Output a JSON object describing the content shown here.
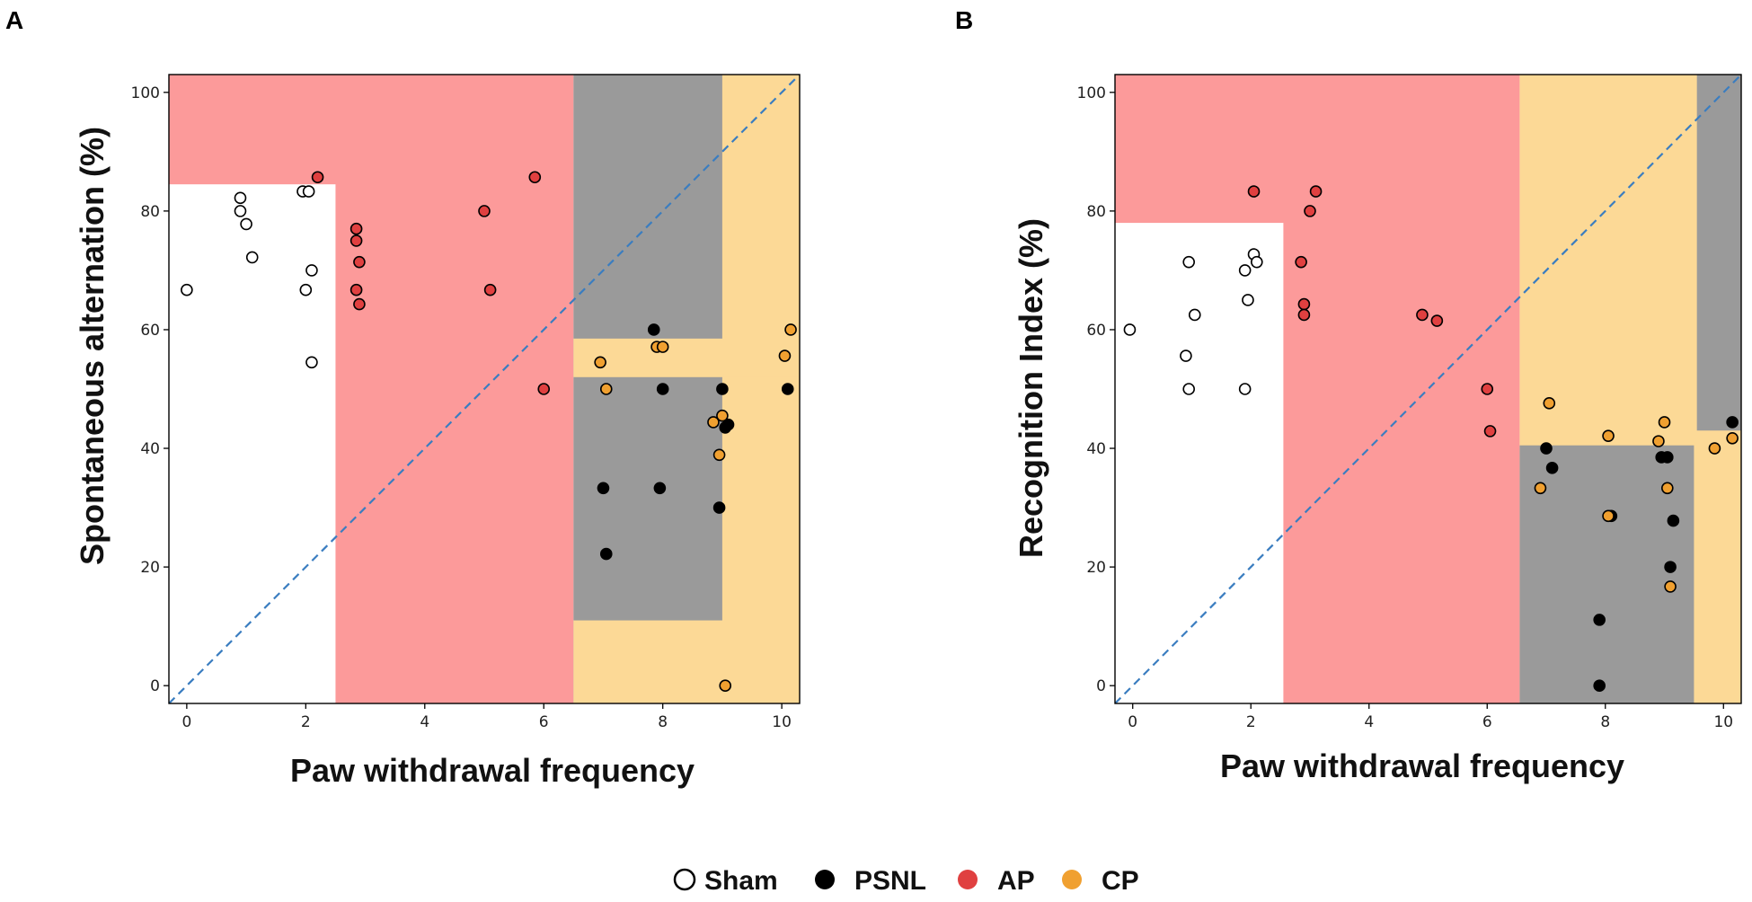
{
  "colors": {
    "sham": "#ffffff",
    "psnl": "#000000",
    "ap": "#e04040",
    "cp": "#f0a030",
    "region_ap": "#fc9a9a",
    "region_cp": "#fcd996",
    "region_psnl": "#9a9a9a",
    "region_sham": "#ffffff",
    "diagonal": "#3a7dc0"
  },
  "legend": {
    "items": [
      {
        "label": "Sham",
        "key": "sham"
      },
      {
        "label": "PSNL",
        "key": "psnl"
      },
      {
        "label": "AP",
        "key": "ap"
      },
      {
        "label": "CP",
        "key": "cp"
      }
    ]
  },
  "chart_data": [
    {
      "panel": "A",
      "type": "scatter",
      "xlabel": "Paw withdrawal frequency",
      "ylabel": "Spontaneous alternation (%)",
      "xlim": [
        -0.3,
        10.3
      ],
      "ylim": [
        -3,
        103
      ],
      "xticks": [
        0,
        2,
        4,
        6,
        8,
        10
      ],
      "yticks": [
        0,
        20,
        40,
        60,
        80,
        100
      ],
      "diagonal": true,
      "regions": [
        {
          "class": "ap",
          "x": [
            -0.3,
            6.5
          ],
          "y": [
            -3,
            103
          ]
        },
        {
          "class": "sham",
          "x": [
            -0.3,
            2.5
          ],
          "y": [
            -3,
            84.5
          ]
        },
        {
          "class": "psnl",
          "x": [
            6.5,
            10.3
          ],
          "y": [
            -3,
            103
          ]
        },
        {
          "class": "cp",
          "x": [
            9.0,
            10.3
          ],
          "y": [
            -3,
            103
          ]
        },
        {
          "class": "cp",
          "x": [
            6.5,
            10.3
          ],
          "y": [
            52,
            58.5
          ]
        },
        {
          "class": "cp",
          "x": [
            6.5,
            10.3
          ],
          "y": [
            -3,
            11
          ]
        }
      ],
      "series": [
        {
          "name": "Sham",
          "key": "sham",
          "points": [
            [
              0,
              66.7
            ],
            [
              0.9,
              80
            ],
            [
              0.9,
              82.2
            ],
            [
              1.0,
              77.8
            ],
            [
              1.1,
              72.2
            ],
            [
              1.95,
              83.3
            ],
            [
              2.05,
              83.3
            ],
            [
              2.0,
              66.7
            ],
            [
              2.1,
              70.0
            ],
            [
              2.1,
              54.5
            ]
          ]
        },
        {
          "name": "PSNL",
          "key": "psnl",
          "points": [
            [
              7.0,
              33.3
            ],
            [
              7.05,
              22.2
            ],
            [
              7.85,
              60
            ],
            [
              7.95,
              33.3
            ],
            [
              8.0,
              50
            ],
            [
              9.0,
              50
            ],
            [
              8.95,
              30
            ],
            [
              9.05,
              43.5
            ],
            [
              9.1,
              44
            ],
            [
              10.1,
              50
            ]
          ]
        },
        {
          "name": "AP",
          "key": "ap",
          "points": [
            [
              2.2,
              85.7
            ],
            [
              2.85,
              77
            ],
            [
              2.85,
              75
            ],
            [
              2.9,
              71.4
            ],
            [
              2.85,
              66.7
            ],
            [
              2.9,
              64.3
            ],
            [
              5.0,
              80
            ],
            [
              5.1,
              66.7
            ],
            [
              5.85,
              85.7
            ],
            [
              6.0,
              50
            ]
          ]
        },
        {
          "name": "CP",
          "key": "cp",
          "points": [
            [
              6.95,
              54.5
            ],
            [
              7.05,
              50
            ],
            [
              7.9,
              57.1
            ],
            [
              8.0,
              57.1
            ],
            [
              8.85,
              44.4
            ],
            [
              8.95,
              38.9
            ],
            [
              9.0,
              45.5
            ],
            [
              9.05,
              0
            ],
            [
              10.05,
              55.6
            ],
            [
              10.15,
              60
            ]
          ]
        }
      ]
    },
    {
      "panel": "B",
      "type": "scatter",
      "xlabel": "Paw withdrawal frequency",
      "ylabel": "Recognition Index (%)",
      "xlim": [
        -0.3,
        10.3
      ],
      "ylim": [
        -3,
        103
      ],
      "xticks": [
        0,
        2,
        4,
        6,
        8,
        10
      ],
      "yticks": [
        0,
        20,
        40,
        60,
        80,
        100
      ],
      "diagonal": true,
      "regions": [
        {
          "class": "ap",
          "x": [
            -0.3,
            6.55
          ],
          "y": [
            -3,
            103
          ]
        },
        {
          "class": "sham",
          "x": [
            -0.3,
            2.55
          ],
          "y": [
            -3,
            78
          ]
        },
        {
          "class": "cp",
          "x": [
            6.55,
            10.3
          ],
          "y": [
            -3,
            103
          ]
        },
        {
          "class": "psnl",
          "x": [
            6.55,
            9.5
          ],
          "y": [
            -3,
            40.5
          ]
        },
        {
          "class": "psnl",
          "x": [
            9.55,
            10.3
          ],
          "y": [
            43,
            103
          ]
        }
      ],
      "series": [
        {
          "name": "Sham",
          "key": "sham",
          "points": [
            [
              -0.05,
              60
            ],
            [
              0.9,
              55.6
            ],
            [
              0.95,
              50
            ],
            [
              0.95,
              71.4
            ],
            [
              1.05,
              62.5
            ],
            [
              1.9,
              70
            ],
            [
              1.95,
              65
            ],
            [
              2.05,
              72.7
            ],
            [
              2.1,
              71.4
            ],
            [
              1.9,
              50
            ]
          ]
        },
        {
          "name": "PSNL",
          "key": "psnl",
          "points": [
            [
              7.0,
              40
            ],
            [
              7.1,
              36.7
            ],
            [
              7.9,
              11.1
            ],
            [
              7.9,
              0
            ],
            [
              8.1,
              28.6
            ],
            [
              8.95,
              38.5
            ],
            [
              9.05,
              38.5
            ],
            [
              9.1,
              20
            ],
            [
              9.15,
              27.8
            ],
            [
              10.15,
              44.4
            ]
          ]
        },
        {
          "name": "AP",
          "key": "ap",
          "points": [
            [
              2.05,
              83.3
            ],
            [
              2.85,
              71.4
            ],
            [
              2.9,
              64.3
            ],
            [
              2.9,
              62.5
            ],
            [
              3.0,
              80
            ],
            [
              3.1,
              83.3
            ],
            [
              4.9,
              62.5
            ],
            [
              5.15,
              61.5
            ],
            [
              6.0,
              50
            ],
            [
              6.05,
              42.9
            ]
          ]
        },
        {
          "name": "CP",
          "key": "cp",
          "points": [
            [
              6.9,
              33.3
            ],
            [
              7.05,
              47.6
            ],
            [
              8.05,
              42.1
            ],
            [
              8.05,
              28.6
            ],
            [
              8.9,
              41.2
            ],
            [
              9.0,
              44.4
            ],
            [
              9.05,
              33.3
            ],
            [
              9.1,
              16.7
            ],
            [
              9.85,
              40
            ],
            [
              10.15,
              41.7
            ]
          ]
        }
      ]
    }
  ]
}
